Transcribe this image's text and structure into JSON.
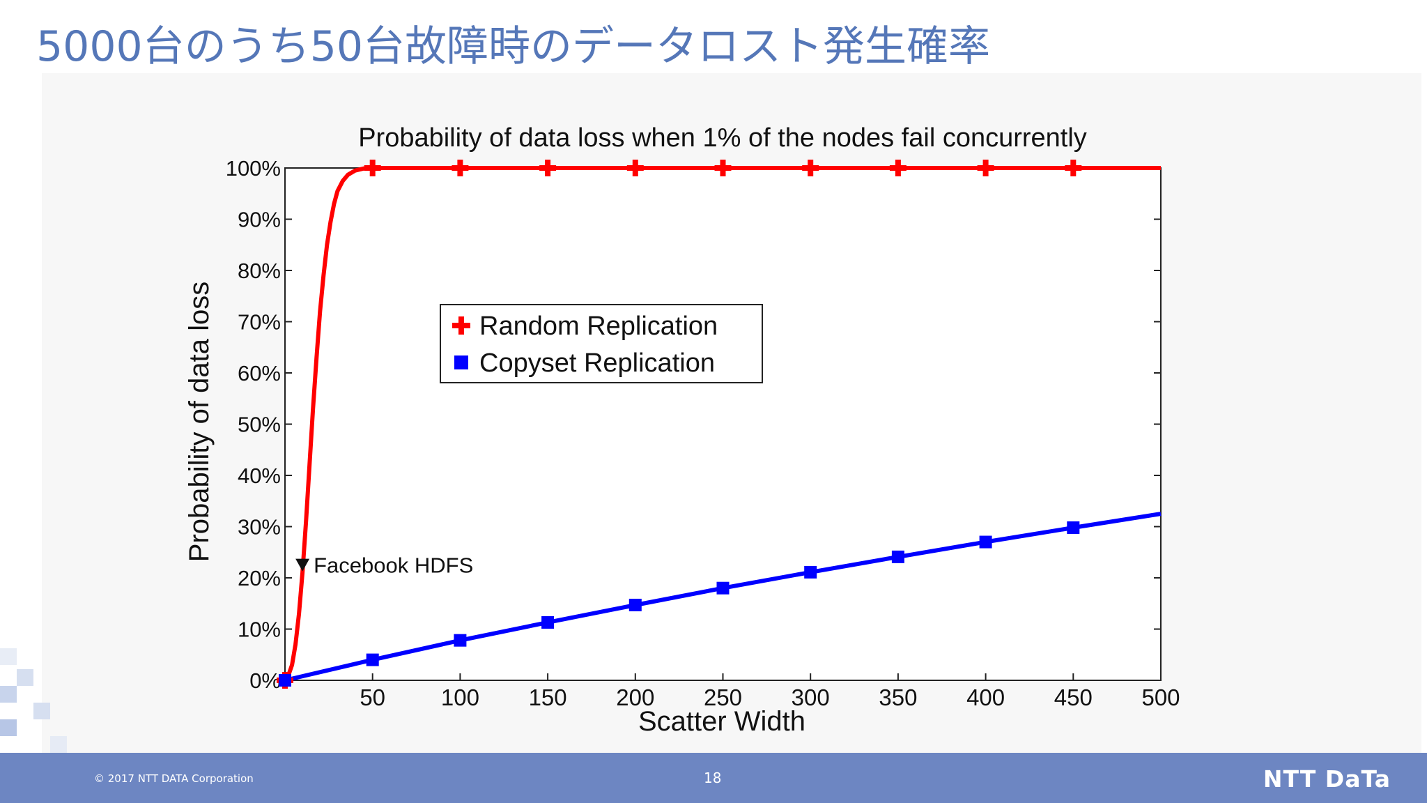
{
  "slide": {
    "title": "5000台のうち50台故障時のデータロスト発生確率",
    "footer": {
      "copyright": "© 2017 NTT DATA Corporation",
      "page_number": "18",
      "brand": "NTT DaTa"
    }
  },
  "chart_data": {
    "type": "line",
    "title": "Probability of data loss when 1% of the nodes fail concurrently",
    "xlabel": "Scatter Width",
    "ylabel": "Probability of data loss",
    "xlim": [
      0,
      500
    ],
    "ylim": [
      0,
      100
    ],
    "x_ticks": [
      50,
      100,
      150,
      200,
      250,
      300,
      350,
      400,
      450,
      500
    ],
    "y_ticks": [
      "0%",
      "10%",
      "20%",
      "30%",
      "40%",
      "50%",
      "60%",
      "70%",
      "80%",
      "90%",
      "100%"
    ],
    "y_tick_values": [
      0,
      10,
      20,
      30,
      40,
      50,
      60,
      70,
      80,
      90,
      100
    ],
    "legend_position": "upper-center",
    "grid": false,
    "series": [
      {
        "name": "Random Replication",
        "color": "#ff0000",
        "marker": "plus",
        "curve_x": [
          0,
          2,
          4,
          6,
          8,
          10,
          12,
          14,
          16,
          18,
          20,
          22,
          24,
          26,
          28,
          30,
          33,
          36,
          40,
          45,
          50,
          100,
          150,
          200,
          250,
          300,
          350,
          400,
          450,
          500
        ],
        "curve_y": [
          0,
          1,
          3,
          7,
          13,
          21,
          31,
          42,
          53,
          63,
          72,
          79,
          85,
          89.5,
          93,
          95.5,
          97.5,
          98.7,
          99.5,
          99.9,
          100,
          100,
          100,
          100,
          100,
          100,
          100,
          100,
          100,
          100
        ],
        "marker_x": [
          0,
          50,
          100,
          150,
          200,
          250,
          300,
          350,
          400,
          450
        ],
        "marker_y": [
          0,
          100,
          100,
          100,
          100,
          100,
          100,
          100,
          100,
          100
        ]
      },
      {
        "name": "Copyset Replication",
        "color": "#0000ff",
        "marker": "square",
        "curve_x": [
          0,
          50,
          100,
          150,
          200,
          250,
          300,
          350,
          400,
          450,
          500
        ],
        "curve_y": [
          0,
          4,
          7.8,
          11.3,
          14.7,
          18,
          21.1,
          24.1,
          27,
          29.8,
          32.5
        ],
        "marker_x": [
          0,
          50,
          100,
          150,
          200,
          250,
          300,
          350,
          400,
          450
        ],
        "marker_y": [
          0,
          4,
          7.8,
          11.3,
          14.7,
          18,
          21.1,
          24.1,
          27,
          29.8
        ]
      }
    ],
    "annotations": [
      {
        "text": "Facebook HDFS",
        "x": 10,
        "y": 22.5,
        "marker": "down-triangle"
      }
    ]
  }
}
